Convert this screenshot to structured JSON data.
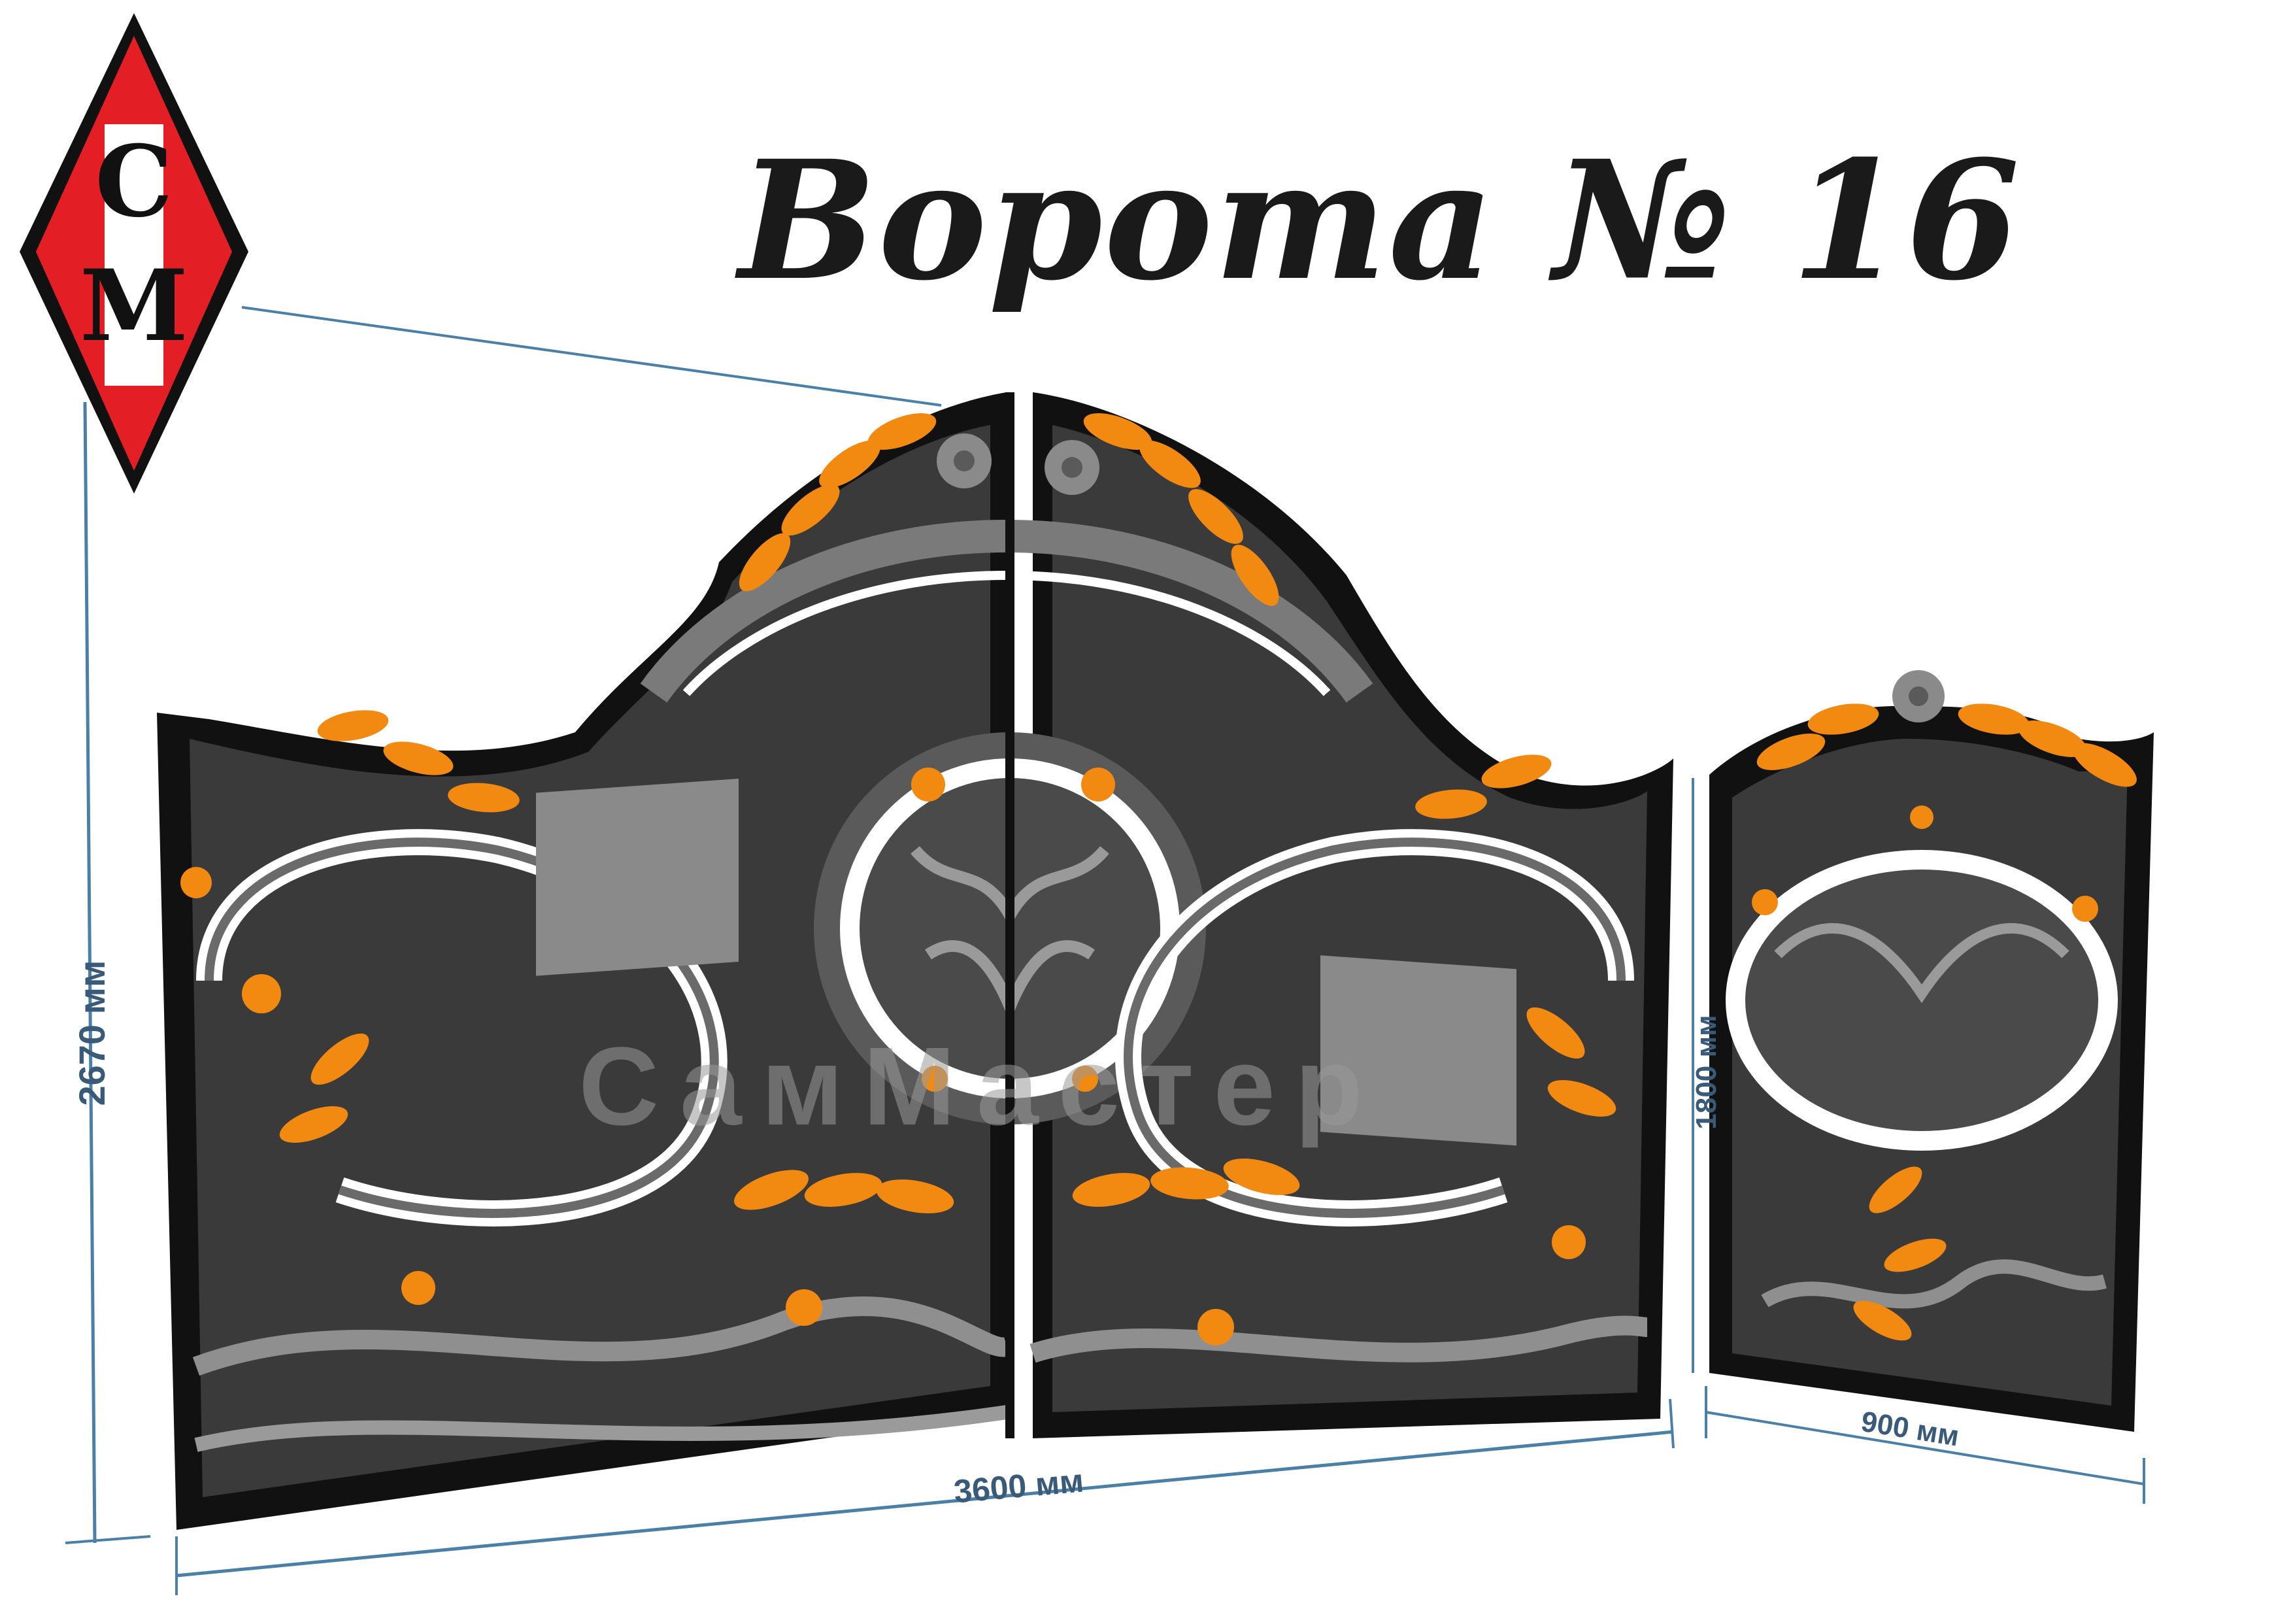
{
  "title": "Ворота № 16",
  "logo": {
    "letters": "СМ"
  },
  "watermark": "СамМастер",
  "dimensions": {
    "height": "2670 мм",
    "gate_width": "3600 мм",
    "wicket_height": "1800 мм",
    "wicket_width": "900 мм"
  },
  "colors": {
    "accent": "#f28a12",
    "dark": "#2b2b2b",
    "mid": "#5a5a5a",
    "light": "#a0a0a0",
    "logo_red": "#e31e24",
    "dimension_line": "#4a7fa8"
  }
}
